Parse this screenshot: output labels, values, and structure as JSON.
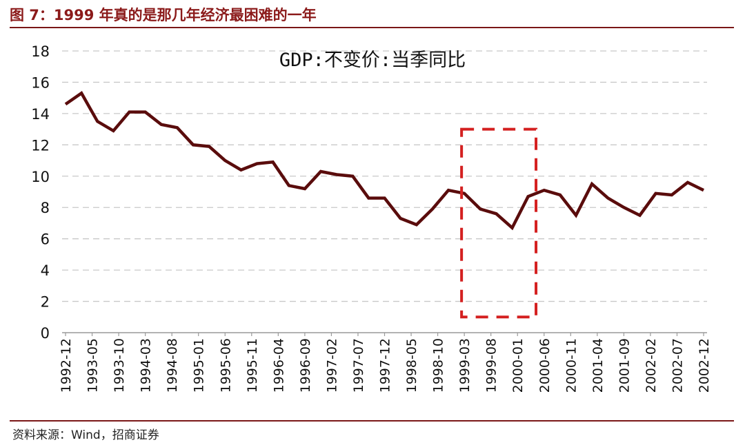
{
  "header": {
    "title": "图 7：1999 年真的是那几年经济最困难的一年"
  },
  "footer": {
    "source": "资料来源：Wind，招商证券"
  },
  "colors": {
    "line": "#5a0c0c",
    "title": "#8b1a1a",
    "highlight_box": "#d42020",
    "grid": "#c8c8c8"
  },
  "chart_data": {
    "type": "line",
    "title": "GDP:不变价:当季同比",
    "xlabel": "",
    "ylabel": "",
    "ylim": [
      0,
      18
    ],
    "yticks": [
      0,
      2,
      4,
      6,
      8,
      10,
      12,
      14,
      16,
      18
    ],
    "xlim": [
      "1992-12",
      "2002-12"
    ],
    "xtick_labels": [
      "1992-12",
      "1993-05",
      "1993-10",
      "1994-03",
      "1994-08",
      "1995-01",
      "1995-06",
      "1995-11",
      "1996-04",
      "1996-09",
      "1997-02",
      "1997-07",
      "1997-12",
      "1998-05",
      "1998-10",
      "1999-03",
      "1999-08",
      "2000-01",
      "2000-06",
      "2000-11",
      "2001-04",
      "2001-09",
      "2002-02",
      "2002-07",
      "2002-12"
    ],
    "grid": true,
    "x": [
      "1992-12",
      "1993-03",
      "1993-06",
      "1993-09",
      "1993-12",
      "1994-03",
      "1994-06",
      "1994-09",
      "1994-12",
      "1995-03",
      "1995-06",
      "1995-09",
      "1995-12",
      "1996-03",
      "1996-06",
      "1996-09",
      "1996-12",
      "1997-03",
      "1997-06",
      "1997-09",
      "1997-12",
      "1998-03",
      "1998-06",
      "1998-09",
      "1998-12",
      "1999-03",
      "1999-06",
      "1999-09",
      "1999-12",
      "2000-03",
      "2000-06",
      "2000-09",
      "2000-12",
      "2001-03",
      "2001-06",
      "2001-09",
      "2001-12",
      "2002-03",
      "2002-06",
      "2002-09",
      "2002-12"
    ],
    "values": [
      14.6,
      15.3,
      13.5,
      12.9,
      14.1,
      14.1,
      13.3,
      13.1,
      12.0,
      11.9,
      11.0,
      10.4,
      10.8,
      10.9,
      9.4,
      9.2,
      10.3,
      10.1,
      10.0,
      8.6,
      8.6,
      7.3,
      6.9,
      7.9,
      9.1,
      8.9,
      7.9,
      7.6,
      6.7,
      8.7,
      9.1,
      8.8,
      7.5,
      9.5,
      8.6,
      8.0,
      7.5,
      8.9,
      8.8,
      9.6,
      9.1
    ],
    "annotations": [
      {
        "type": "dashed-box",
        "x_range": [
          "1999-03",
          "2000-05"
        ],
        "y_range": [
          1,
          13
        ]
      }
    ]
  }
}
